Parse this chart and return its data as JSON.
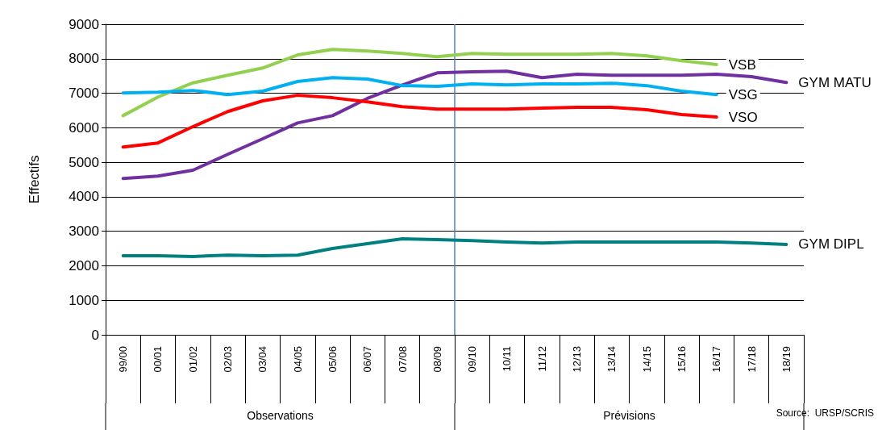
{
  "chart_data": {
    "type": "line",
    "ylabel": "Effectifs",
    "categories": [
      "99/00",
      "00/01",
      "01/02",
      "02/03",
      "03/04",
      "04/05",
      "05/06",
      "06/07",
      "07/08",
      "08/09",
      "09/10",
      "10/11",
      "11/12",
      "12/13",
      "13/14",
      "14/15",
      "15/16",
      "16/17",
      "17/18",
      "18/19"
    ],
    "series": [
      {
        "name": "VSB",
        "color": "#92d050",
        "values": [
          6350,
          6890,
          7300,
          7520,
          7730,
          8110,
          8270,
          8220,
          8150,
          8060,
          8150,
          8130,
          8130,
          8130,
          8150,
          8080,
          7940,
          7830,
          null,
          null
        ]
      },
      {
        "name": "GYM MATU",
        "color": "#7030a0",
        "values": [
          4530,
          4600,
          4770,
          5230,
          5680,
          6140,
          6350,
          6850,
          7240,
          7590,
          7620,
          7640,
          7450,
          7550,
          7520,
          7520,
          7520,
          7550,
          7480,
          7310
        ]
      },
      {
        "name": "VSG",
        "color": "#00b0f0",
        "values": [
          7010,
          7030,
          7080,
          6960,
          7060,
          7340,
          7450,
          7410,
          7220,
          7200,
          7270,
          7240,
          7270,
          7270,
          7290,
          7220,
          7060,
          6960,
          null,
          null
        ]
      },
      {
        "name": "VSO",
        "color": "#ff0000",
        "values": [
          5440,
          5560,
          6030,
          6470,
          6780,
          6940,
          6870,
          6750,
          6610,
          6540,
          6540,
          6540,
          6570,
          6590,
          6590,
          6520,
          6380,
          6310,
          null,
          null
        ]
      },
      {
        "name": "GYM DIPL",
        "color": "#008080",
        "values": [
          2290,
          2290,
          2270,
          2310,
          2290,
          2310,
          2500,
          2640,
          2780,
          2760,
          2730,
          2690,
          2660,
          2690,
          2690,
          2690,
          2690,
          2690,
          2660,
          2620
        ]
      }
    ],
    "ylim": [
      0,
      9000
    ],
    "yticks": [
      0,
      1000,
      2000,
      3000,
      4000,
      5000,
      6000,
      7000,
      8000,
      9000
    ],
    "grid": "y",
    "legend": false,
    "marker": "none",
    "line_style": "solid",
    "ref_lines": [
      {
        "axis": "x",
        "value": "09/10",
        "color": "#4f81bd"
      }
    ],
    "annotations": [
      "Observations",
      "Prévisions",
      "Source:  URSP/SCRIS"
    ]
  }
}
